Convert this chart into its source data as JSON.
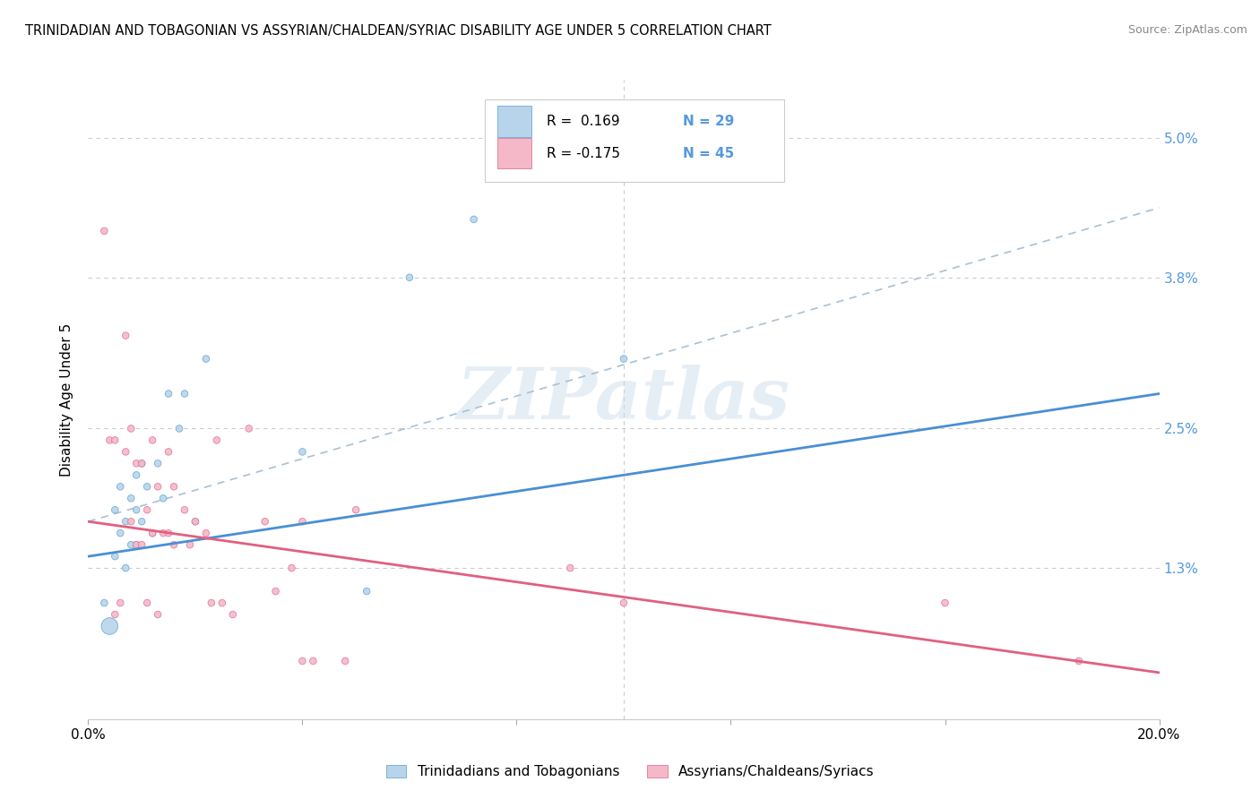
{
  "title": "TRINIDADIAN AND TOBAGONIAN VS ASSYRIAN/CHALDEAN/SYRIAC DISABILITY AGE UNDER 5 CORRELATION CHART",
  "source": "Source: ZipAtlas.com",
  "ylabel": "Disability Age Under 5",
  "xlim": [
    0.0,
    0.2
  ],
  "ylim": [
    0.0,
    0.055
  ],
  "yticks": [
    0.0,
    0.013,
    0.025,
    0.038,
    0.05
  ],
  "ytick_labels": [
    "",
    "1.3%",
    "2.5%",
    "3.8%",
    "5.0%"
  ],
  "xticks": [
    0.0,
    0.04,
    0.08,
    0.12,
    0.16,
    0.2
  ],
  "xtick_labels": [
    "0.0%",
    "",
    "",
    "",
    "",
    "20.0%"
  ],
  "watermark": "ZIPatlas",
  "blue_fill": "#b8d4ea",
  "blue_edge": "#6aaad4",
  "pink_fill": "#f4b8c8",
  "pink_edge": "#e07898",
  "blue_line_color": "#4a8fd4",
  "pink_line_color": "#e06080",
  "dash_line_color": "#aac0d4",
  "legend_blue_R": "R =  0.169",
  "legend_blue_N": "N = 29",
  "legend_pink_R": "R = -0.175",
  "legend_pink_N": "N = 45",
  "blue_scatter_x": [
    0.003,
    0.004,
    0.005,
    0.005,
    0.006,
    0.006,
    0.007,
    0.007,
    0.008,
    0.008,
    0.009,
    0.009,
    0.009,
    0.01,
    0.01,
    0.011,
    0.012,
    0.013,
    0.014,
    0.015,
    0.017,
    0.018,
    0.02,
    0.022,
    0.04,
    0.052,
    0.06,
    0.072,
    0.1
  ],
  "blue_scatter_y": [
    0.01,
    0.008,
    0.014,
    0.018,
    0.016,
    0.02,
    0.013,
    0.017,
    0.015,
    0.019,
    0.015,
    0.018,
    0.021,
    0.017,
    0.022,
    0.02,
    0.016,
    0.022,
    0.019,
    0.028,
    0.025,
    0.028,
    0.017,
    0.031,
    0.023,
    0.011,
    0.038,
    0.043,
    0.031
  ],
  "blue_scatter_size": [
    30,
    180,
    30,
    30,
    30,
    30,
    30,
    30,
    30,
    30,
    30,
    30,
    30,
    30,
    30,
    30,
    30,
    30,
    30,
    30,
    30,
    30,
    30,
    30,
    30,
    30,
    30,
    30,
    30
  ],
  "pink_scatter_x": [
    0.003,
    0.004,
    0.005,
    0.005,
    0.006,
    0.007,
    0.007,
    0.008,
    0.008,
    0.009,
    0.009,
    0.01,
    0.01,
    0.011,
    0.011,
    0.012,
    0.012,
    0.013,
    0.013,
    0.014,
    0.015,
    0.015,
    0.016,
    0.016,
    0.018,
    0.019,
    0.02,
    0.022,
    0.023,
    0.024,
    0.025,
    0.027,
    0.03,
    0.033,
    0.035,
    0.038,
    0.04,
    0.04,
    0.042,
    0.048,
    0.05,
    0.09,
    0.1,
    0.16,
    0.185
  ],
  "pink_scatter_y": [
    0.042,
    0.024,
    0.009,
    0.024,
    0.01,
    0.033,
    0.023,
    0.025,
    0.017,
    0.022,
    0.015,
    0.022,
    0.015,
    0.018,
    0.01,
    0.024,
    0.016,
    0.02,
    0.009,
    0.016,
    0.023,
    0.016,
    0.015,
    0.02,
    0.018,
    0.015,
    0.017,
    0.016,
    0.01,
    0.024,
    0.01,
    0.009,
    0.025,
    0.017,
    0.011,
    0.013,
    0.017,
    0.005,
    0.005,
    0.005,
    0.018,
    0.013,
    0.01,
    0.01,
    0.005
  ],
  "pink_scatter_size": [
    30,
    30,
    30,
    30,
    30,
    30,
    30,
    30,
    30,
    30,
    30,
    30,
    30,
    30,
    30,
    30,
    30,
    30,
    30,
    30,
    30,
    30,
    30,
    30,
    30,
    30,
    30,
    30,
    30,
    30,
    30,
    30,
    30,
    30,
    30,
    30,
    30,
    30,
    30,
    30,
    30,
    30,
    30,
    30,
    30
  ],
  "blue_trend_x0": 0.0,
  "blue_trend_x1": 0.2,
  "blue_trend_y0": 0.014,
  "blue_trend_y1": 0.028,
  "pink_trend_x0": 0.0,
  "pink_trend_x1": 0.2,
  "pink_trend_y0": 0.017,
  "pink_trend_y1": 0.004,
  "dash_trend_x0": 0.0,
  "dash_trend_x1": 0.2,
  "dash_trend_y0": 0.017,
  "dash_trend_y1": 0.044
}
